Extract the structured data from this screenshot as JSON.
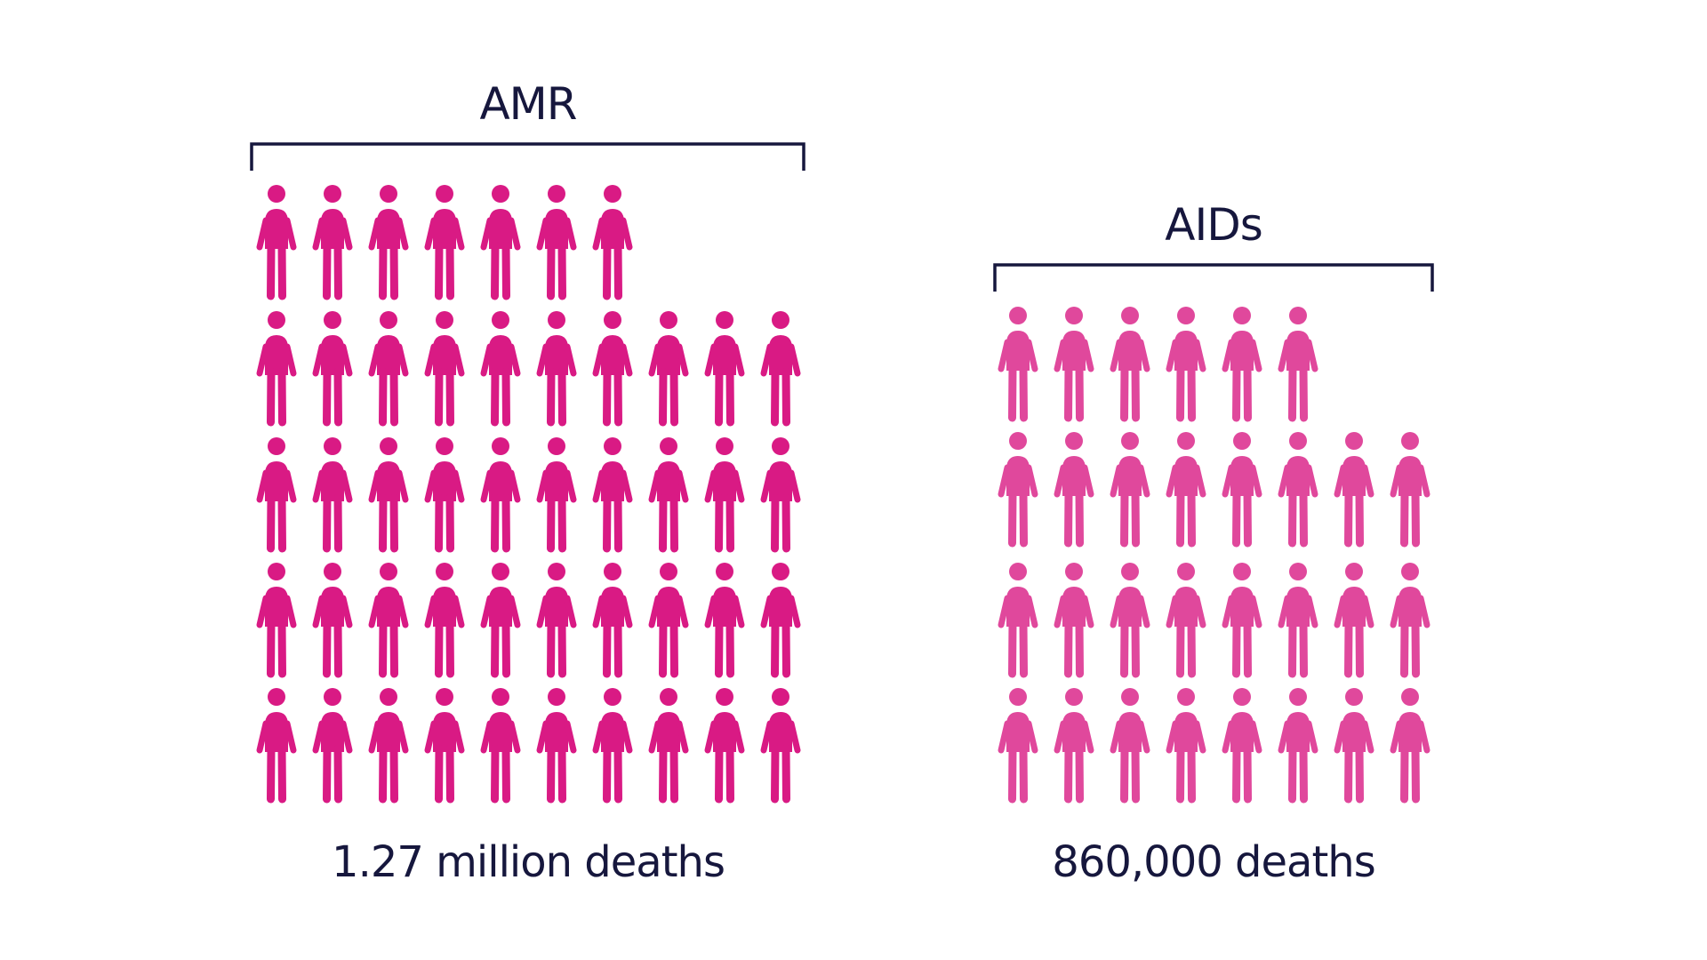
{
  "colors": {
    "text": "#16173d",
    "amr": "#d91a84",
    "aids": "#e0489c"
  },
  "icon": "person-icon",
  "chart_data": {
    "type": "bar",
    "style": "pictogram",
    "categories": [
      "AMR",
      "AIDs"
    ],
    "values": [
      1270000,
      860000
    ],
    "value_labels": [
      "1.27 million deaths",
      "860,000 deaths"
    ],
    "icon_counts": [
      47,
      30
    ],
    "icon_rows": [
      [
        7,
        10,
        10,
        10,
        10
      ],
      [
        6,
        8,
        8,
        8
      ]
    ]
  }
}
